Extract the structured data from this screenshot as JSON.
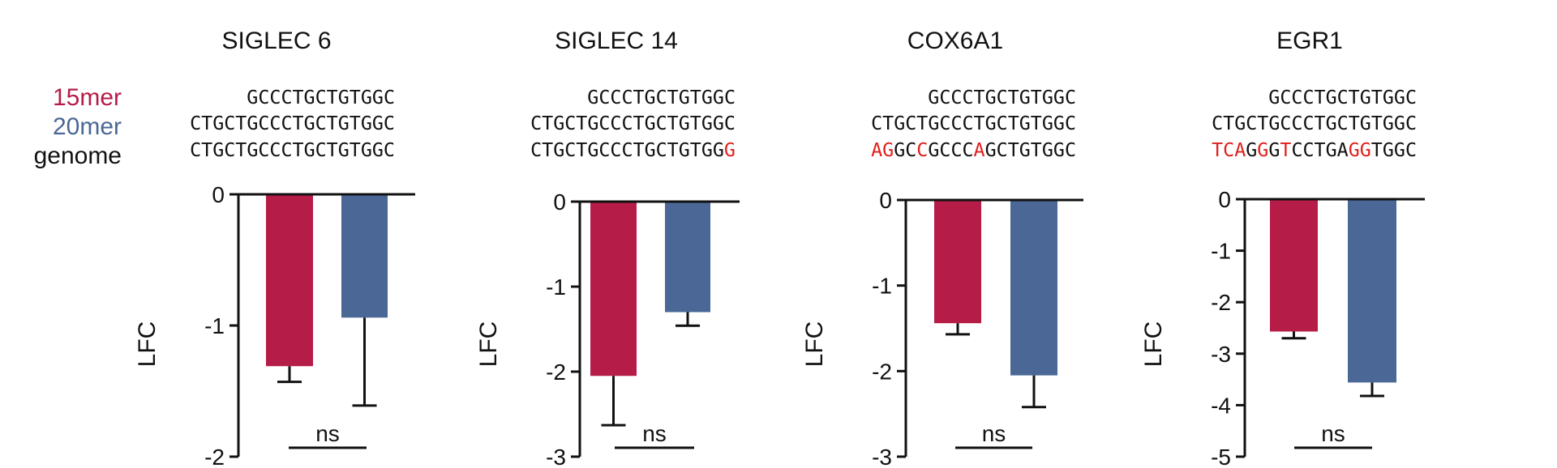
{
  "legend": {
    "label_15mer": "15mer",
    "label_20mer": "20mer",
    "label_genome": "genome"
  },
  "colors": {
    "15mer": "#b51c48",
    "20mer": "#4a6796",
    "mismatch": "#e0201c",
    "text": "#111111"
  },
  "chart_data": [
    {
      "type": "bar",
      "title": "SIGLEC 6",
      "ylabel": "LFC",
      "ylim": [
        -2,
        0
      ],
      "yticks": [
        0,
        -1,
        -2
      ],
      "series": [
        {
          "name": "15mer",
          "value": -1.31,
          "error": 0.12
        },
        {
          "name": "20mer",
          "value": -0.94,
          "error": 0.67
        }
      ],
      "significance": "ns",
      "sequences": {
        "s15": "GCCCTGCTGTGGC",
        "s20": "CTGCTGCCCTGCTGTGGC",
        "genome": "CTGCTGCCCTGCTGTGGC",
        "genome_mismatch": []
      }
    },
    {
      "type": "bar",
      "title": "SIGLEC 14",
      "ylabel": "LFC",
      "ylim": [
        -3,
        0
      ],
      "yticks": [
        0,
        -1,
        -2,
        -3
      ],
      "series": [
        {
          "name": "15mer",
          "value": -2.05,
          "error": 0.58
        },
        {
          "name": "20mer",
          "value": -1.3,
          "error": 0.16
        }
      ],
      "significance": "ns",
      "sequences": {
        "s15": "GCCCTGCTGTGGC",
        "s20": "CTGCTGCCCTGCTGTGGC",
        "genome": "CTGCTGCCCTGCTGTGGG",
        "genome_mismatch": [
          17
        ]
      }
    },
    {
      "type": "bar",
      "title": "COX6A1",
      "ylabel": "LFC",
      "ylim": [
        -3,
        0
      ],
      "yticks": [
        0,
        -1,
        -2,
        -3
      ],
      "series": [
        {
          "name": "15mer",
          "value": -1.44,
          "error": 0.13
        },
        {
          "name": "20mer",
          "value": -2.05,
          "error": 0.37
        }
      ],
      "significance": "ns",
      "sequences": {
        "s15": "GCCCTGCTGTGGC",
        "s20": "CTGCTGCCCTGCTGTGGC",
        "genome": "AGGCCGCCCAGCTGTGGC",
        "genome_mismatch": [
          0,
          1,
          4,
          9
        ]
      }
    },
    {
      "type": "bar",
      "title": "EGR1",
      "ylabel": "LFC",
      "ylim": [
        -5,
        0
      ],
      "yticks": [
        0,
        -1,
        -2,
        -3,
        -4,
        -5
      ],
      "series": [
        {
          "name": "15mer",
          "value": -2.57,
          "error": 0.13
        },
        {
          "name": "20mer",
          "value": -3.56,
          "error": 0.26
        }
      ],
      "significance": "ns",
      "sequences": {
        "s15": "GCCCTGCTGTGGC",
        "s20": "CTGCTGCCCTGCTGTGGC",
        "genome": "TCAGGGTCCTGAGGTGGC",
        "genome_mismatch": [
          0,
          1,
          2,
          4,
          6,
          12,
          13
        ]
      }
    }
  ]
}
